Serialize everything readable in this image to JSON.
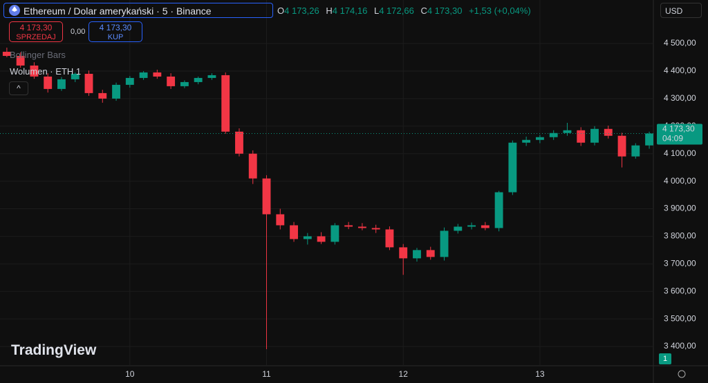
{
  "header": {
    "symbol": "Ethereum / Dolar amerykański · 5 · Binance",
    "o_label": "O",
    "o": "4 173,26",
    "h_label": "H",
    "h": "4 174,16",
    "l_label": "L",
    "l": "4 172,66",
    "c_label": "C",
    "c": "4 173,30",
    "change": "+1,53 (+0,04%)",
    "sell_price": "4 173,30",
    "sell": "SPRZEDAJ",
    "spread": "0,00",
    "buy_price": "4 173,30",
    "buy": "KUP",
    "indicator_1": "Bollinger Bars",
    "indicator_2": "Wolumen · ETH",
    "indicator_2_value": "1",
    "currency": "USD",
    "brand": "TradingView",
    "badge": "1"
  },
  "chart_data": {
    "type": "candlestick",
    "x": [
      9.1,
      9.2,
      9.3,
      9.4,
      9.5,
      9.6,
      9.7,
      9.8,
      9.9,
      10.0,
      10.1,
      10.2,
      10.3,
      10.4,
      10.5,
      10.6,
      10.7,
      10.8,
      10.9,
      11.0,
      11.1,
      11.2,
      11.3,
      11.4,
      11.5,
      11.6,
      11.7,
      11.8,
      11.9,
      12.0,
      12.1,
      12.2,
      12.3,
      12.4,
      12.5,
      12.6,
      12.7,
      12.8,
      12.9,
      13.0,
      13.1,
      13.2,
      13.3,
      13.4,
      13.5,
      13.6,
      13.7,
      13.8
    ],
    "open": [
      4470,
      4455,
      4420,
      4380,
      4335,
      4370,
      4390,
      4320,
      4300,
      4350,
      4375,
      4395,
      4380,
      4345,
      4360,
      4375,
      4385,
      4180,
      4100,
      4010,
      3880,
      3840,
      3790,
      3800,
      3780,
      3840,
      3835,
      3830,
      3825,
      3760,
      3720,
      3750,
      3725,
      3820,
      3835,
      3840,
      3830,
      3960,
      4140,
      4150,
      4160,
      4175,
      4185,
      4140,
      4190,
      4165,
      4090,
      4130
    ],
    "high": [
      4485,
      4468,
      4432,
      4392,
      4378,
      4395,
      4402,
      4332,
      4358,
      4382,
      4400,
      4405,
      4392,
      4366,
      4380,
      4392,
      4395,
      4192,
      4112,
      4022,
      3900,
      3852,
      3812,
      3815,
      3848,
      3852,
      3848,
      3842,
      3836,
      3772,
      3758,
      3762,
      3832,
      3845,
      3850,
      3852,
      3965,
      4148,
      4162,
      4168,
      4185,
      4212,
      4196,
      4200,
      4202,
      4176,
      4138,
      4180
    ],
    "low": [
      4450,
      4412,
      4372,
      4322,
      4328,
      4360,
      4310,
      4285,
      4292,
      4340,
      4368,
      4372,
      4335,
      4338,
      4352,
      4368,
      4172,
      4090,
      3990,
      3390,
      3825,
      3780,
      3770,
      3772,
      3770,
      3826,
      3822,
      3812,
      3750,
      3660,
      3708,
      3715,
      3712,
      3810,
      3825,
      3822,
      3818,
      3950,
      4128,
      4138,
      4150,
      4165,
      4128,
      4130,
      4155,
      4050,
      4082,
      4118
    ],
    "close": [
      4455,
      4420,
      4380,
      4335,
      4370,
      4390,
      4320,
      4300,
      4350,
      4375,
      4395,
      4380,
      4345,
      4360,
      4375,
      4385,
      4180,
      4100,
      4010,
      3880,
      3840,
      3790,
      3800,
      3780,
      3840,
      3835,
      3830,
      3825,
      3760,
      3720,
      3750,
      3725,
      3820,
      3835,
      3840,
      3830,
      3960,
      4140,
      4150,
      4160,
      4175,
      4185,
      4140,
      4190,
      4165,
      4090,
      4130,
      4173.3
    ],
    "up_color": "#089981",
    "down_color": "#f23645",
    "xlim": [
      9.05,
      13.83
    ],
    "xticks": [
      10,
      11,
      12,
      13
    ],
    "ylim": [
      3330,
      4658
    ],
    "yticks": [
      {
        "value": 3400,
        "label": "3 400,00"
      },
      {
        "value": 3500,
        "label": "3 500,00"
      },
      {
        "value": 3600,
        "label": "3 600,00"
      },
      {
        "value": 3700,
        "label": "3 700,00"
      },
      {
        "value": 3800,
        "label": "3 800,00"
      },
      {
        "value": 3900,
        "label": "3 900,00"
      },
      {
        "value": 4000,
        "label": "4 000,00"
      },
      {
        "value": 4100,
        "label": "4 100,00"
      },
      {
        "value": 4200,
        "label": "4 200,00"
      },
      {
        "value": 4300,
        "label": "4 300,00"
      },
      {
        "value": 4400,
        "label": "4 400,00"
      },
      {
        "value": 4500,
        "label": "4 500,00"
      }
    ],
    "grid": true,
    "last_price": {
      "value": 4173.3,
      "label": "4 173,30"
    },
    "last_price_timer": "04:09"
  }
}
